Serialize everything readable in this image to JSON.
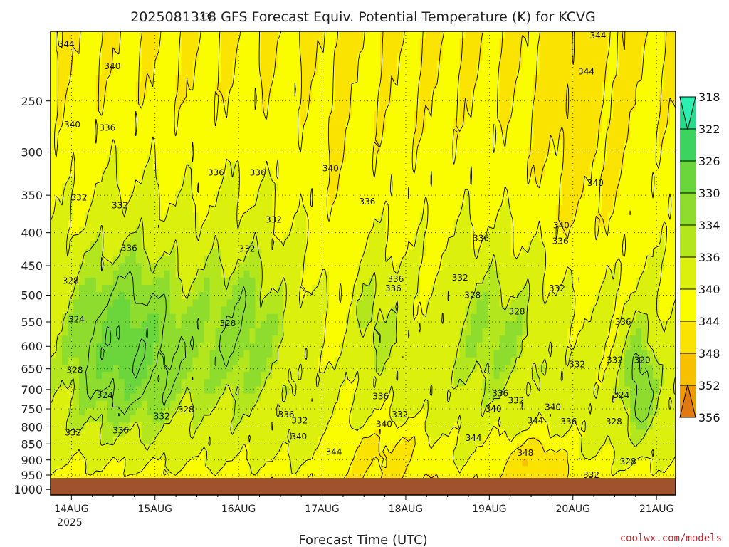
{
  "chart_data": {
    "type": "heatmap",
    "title": "2025081318 GFS Forecast Equiv. Potential Temperature (K) for KCVG",
    "xlabel": "Forecast Time (UTC)",
    "ylabel": "",
    "x_ticks": [
      "14AUG",
      "15AUG",
      "16AUG",
      "17AUG",
      "18AUG",
      "19AUG",
      "20AUG",
      "21AUG"
    ],
    "x_subtick": "2025",
    "y_ticks": [
      250,
      300,
      350,
      400,
      450,
      500,
      550,
      600,
      650,
      700,
      750,
      800,
      850,
      900,
      950,
      1000
    ],
    "y_scale": "log-pressure",
    "ylim": [
      1020,
      195
    ],
    "colorbar": {
      "ticks": [
        318,
        322,
        326,
        330,
        334,
        336,
        340,
        344,
        348,
        352,
        356
      ],
      "colors": [
        "#2cf0b2",
        "#25dc8a",
        "#3cd45e",
        "#6ad63c",
        "#8edd2e",
        "#b4e61e",
        "#dcf00e",
        "#fafc00",
        "#fae300",
        "#f7c000",
        "#f09a00",
        "#e07a10"
      ]
    },
    "contour_labels": [
      {
        "text": "344",
        "t": 0.19,
        "p": 204
      },
      {
        "text": "340",
        "t": 0.26,
        "p": 272
      },
      {
        "text": "340",
        "t": 0.74,
        "p": 221
      },
      {
        "text": "336",
        "t": 0.68,
        "p": 275
      },
      {
        "text": "332",
        "t": 0.34,
        "p": 353
      },
      {
        "text": "332",
        "t": 0.83,
        "p": 363
      },
      {
        "text": "336",
        "t": 0.94,
        "p": 423
      },
      {
        "text": "328",
        "t": 0.24,
        "p": 475
      },
      {
        "text": "324",
        "t": 0.31,
        "p": 545
      },
      {
        "text": "328",
        "t": 0.29,
        "p": 653
      },
      {
        "text": "324",
        "t": 0.65,
        "p": 715
      },
      {
        "text": "332",
        "t": 0.27,
        "p": 817
      },
      {
        "text": "336",
        "t": 0.84,
        "p": 810
      },
      {
        "text": "332",
        "t": 1.33,
        "p": 770
      },
      {
        "text": "328",
        "t": 1.62,
        "p": 752
      },
      {
        "text": "336",
        "t": 1.87,
        "p": 185
      },
      {
        "text": "336",
        "t": 1.98,
        "p": 323
      },
      {
        "text": "328",
        "t": 2.12,
        "p": 553
      },
      {
        "text": "332",
        "t": 2.35,
        "p": 424
      },
      {
        "text": "332",
        "t": 2.67,
        "p": 382
      },
      {
        "text": "336",
        "t": 2.82,
        "p": 765
      },
      {
        "text": "336",
        "t": 2.48,
        "p": 323
      },
      {
        "text": "332",
        "t": 2.98,
        "p": 782
      },
      {
        "text": "340",
        "t": 2.97,
        "p": 828
      },
      {
        "text": "340",
        "t": 3.35,
        "p": 318
      },
      {
        "text": "336",
        "t": 3.79,
        "p": 358
      },
      {
        "text": "336",
        "t": 4.1,
        "p": 488
      },
      {
        "text": "336",
        "t": 3.95,
        "p": 717
      },
      {
        "text": "340",
        "t": 3.99,
        "p": 792
      },
      {
        "text": "332",
        "t": 4.18,
        "p": 765
      },
      {
        "text": "336",
        "t": 4.13,
        "p": 472
      },
      {
        "text": "344",
        "t": 3.39,
        "p": 875
      },
      {
        "text": "332",
        "t": 4.9,
        "p": 470
      },
      {
        "text": "328",
        "t": 5.05,
        "p": 500
      },
      {
        "text": "336",
        "t": 5.15,
        "p": 408
      },
      {
        "text": "328",
        "t": 5.58,
        "p": 530
      },
      {
        "text": "344",
        "t": 5.06,
        "p": 832
      },
      {
        "text": "336",
        "t": 5.38,
        "p": 710
      },
      {
        "text": "340",
        "t": 5.3,
        "p": 750
      },
      {
        "text": "332",
        "t": 5.57,
        "p": 728
      },
      {
        "text": "344",
        "t": 5.8,
        "p": 782
      },
      {
        "text": "348",
        "t": 5.68,
        "p": 878
      },
      {
        "text": "340",
        "t": 6.01,
        "p": 745
      },
      {
        "text": "336",
        "t": 6.2,
        "p": 785
      },
      {
        "text": "332",
        "t": 6.06,
        "p": 488
      },
      {
        "text": "336",
        "t": 6.1,
        "p": 412
      },
      {
        "text": "340",
        "t": 6.11,
        "p": 390
      },
      {
        "text": "344",
        "t": 6.55,
        "p": 198
      },
      {
        "text": "344",
        "t": 6.41,
        "p": 225
      },
      {
        "text": "340",
        "t": 6.52,
        "p": 335
      },
      {
        "text": "336",
        "t": 6.85,
        "p": 550
      },
      {
        "text": "332",
        "t": 6.3,
        "p": 640
      },
      {
        "text": "332",
        "t": 6.75,
        "p": 630
      },
      {
        "text": "320",
        "t": 7.08,
        "p": 630
      },
      {
        "text": "324",
        "t": 6.83,
        "p": 715
      },
      {
        "text": "328",
        "t": 6.74,
        "p": 785
      },
      {
        "text": "328",
        "t": 6.91,
        "p": 905
      },
      {
        "text": "332",
        "t": 6.47,
        "p": 950
      }
    ]
  },
  "watermark": "coolwx.com/models"
}
